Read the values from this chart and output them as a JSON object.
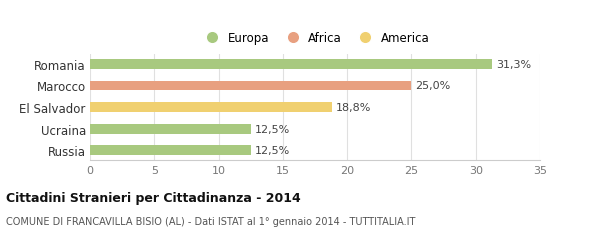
{
  "categories": [
    "Romania",
    "Marocco",
    "El Salvador",
    "Ucraina",
    "Russia"
  ],
  "values": [
    31.3,
    25.0,
    18.8,
    12.5,
    12.5
  ],
  "labels": [
    "31,3%",
    "25,0%",
    "18,8%",
    "12,5%",
    "12,5%"
  ],
  "colors": [
    "#a8c97f",
    "#e8a080",
    "#f0d070",
    "#a8c97f",
    "#a8c97f"
  ],
  "legend": [
    {
      "label": "Europa",
      "color": "#a8c97f"
    },
    {
      "label": "Africa",
      "color": "#e8a080"
    },
    {
      "label": "America",
      "color": "#f0d070"
    }
  ],
  "xlim": [
    0,
    35
  ],
  "xticks": [
    0,
    5,
    10,
    15,
    20,
    25,
    30,
    35
  ],
  "title": "Cittadini Stranieri per Cittadinanza - 2014",
  "subtitle": "COMUNE DI FRANCAVILLA BISIO (AL) - Dati ISTAT al 1° gennaio 2014 - TUTTITALIA.IT",
  "background_color": "#ffffff",
  "bar_height": 0.45
}
